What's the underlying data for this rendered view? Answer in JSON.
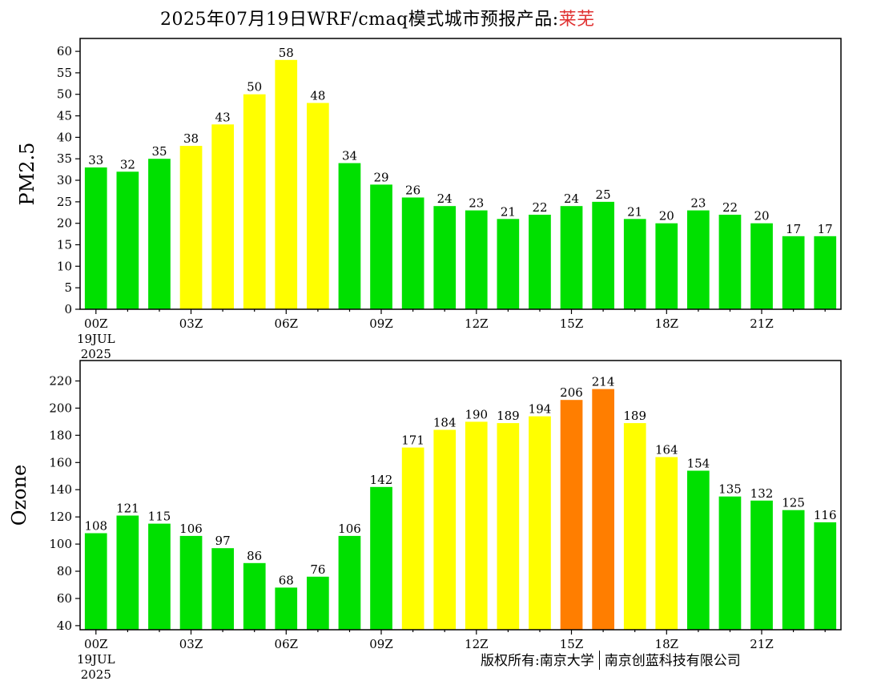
{
  "title": {
    "main": "2025年07月19日WRF/cmaq模式城市预报产品:",
    "city": "莱芜"
  },
  "colors": {
    "good": "#00e000",
    "moderate": "#ffff00",
    "unhealthy_sensitive": "#ff7e00"
  },
  "copyright": {
    "left": "版权所有:南京大学",
    "right": "南京创蓝科技有限公司"
  },
  "chart_data": [
    {
      "type": "bar",
      "ylabel": "PM2.5",
      "ylim": [
        0,
        63
      ],
      "yticks": [
        0,
        5,
        10,
        15,
        20,
        25,
        30,
        35,
        40,
        45,
        50,
        55,
        60
      ],
      "xtick_labels": [
        {
          "hour": 0,
          "lines": [
            "00Z",
            "19JUL",
            "2025"
          ]
        },
        {
          "hour": 3,
          "lines": [
            "03Z"
          ]
        },
        {
          "hour": 6,
          "lines": [
            "06Z"
          ]
        },
        {
          "hour": 9,
          "lines": [
            "09Z"
          ]
        },
        {
          "hour": 12,
          "lines": [
            "12Z"
          ]
        },
        {
          "hour": 15,
          "lines": [
            "15Z"
          ]
        },
        {
          "hour": 18,
          "lines": [
            "18Z"
          ]
        },
        {
          "hour": 21,
          "lines": [
            "21Z"
          ]
        }
      ],
      "values": [
        33,
        32,
        35,
        38,
        43,
        50,
        58,
        48,
        34,
        29,
        26,
        24,
        23,
        21,
        22,
        24,
        25,
        21,
        20,
        23,
        22,
        20,
        17,
        17
      ],
      "value_labels": [
        "33",
        "32",
        "35",
        "38",
        "43",
        "50",
        "58",
        "48",
        "34",
        "29",
        "26",
        "24",
        "23",
        "21",
        "22",
        "24",
        "25",
        "21",
        "20",
        "23",
        "22",
        "20",
        "17",
        "17"
      ],
      "bar_colors": [
        "good",
        "good",
        "good",
        "moderate",
        "moderate",
        "moderate",
        "moderate",
        "moderate",
        "good",
        "good",
        "good",
        "good",
        "good",
        "good",
        "good",
        "good",
        "good",
        "good",
        "good",
        "good",
        "good",
        "good",
        "good",
        "good"
      ]
    },
    {
      "type": "bar",
      "ylabel": "Ozone",
      "ylim": [
        37,
        235
      ],
      "yticks": [
        40,
        60,
        80,
        100,
        120,
        140,
        160,
        180,
        200,
        220
      ],
      "xtick_labels": [
        {
          "hour": 0,
          "lines": [
            "00Z",
            "19JUL",
            "2025"
          ]
        },
        {
          "hour": 3,
          "lines": [
            "03Z"
          ]
        },
        {
          "hour": 6,
          "lines": [
            "06Z"
          ]
        },
        {
          "hour": 9,
          "lines": [
            "09Z"
          ]
        },
        {
          "hour": 12,
          "lines": [
            "12Z"
          ]
        },
        {
          "hour": 15,
          "lines": [
            "15Z"
          ]
        },
        {
          "hour": 18,
          "lines": [
            "18Z"
          ]
        },
        {
          "hour": 21,
          "lines": [
            "21Z"
          ]
        }
      ],
      "values": [
        108,
        121,
        115,
        106,
        97,
        86,
        68,
        76,
        106,
        142,
        171,
        184,
        190,
        189,
        194,
        206,
        214,
        189,
        164,
        154,
        135,
        132,
        125,
        116
      ],
      "value_labels": [
        "108",
        "121",
        "115",
        "106",
        "97",
        "86",
        "68",
        "76",
        "106",
        "142",
        "171",
        "184",
        "190",
        "189",
        "194",
        "206",
        "214",
        "189",
        "164",
        "154",
        "135",
        "132",
        "125",
        "116"
      ],
      "bar_colors": [
        "good",
        "good",
        "good",
        "good",
        "good",
        "good",
        "good",
        "good",
        "good",
        "good",
        "moderate",
        "moderate",
        "moderate",
        "moderate",
        "moderate",
        "unhealthy_sensitive",
        "unhealthy_sensitive",
        "moderate",
        "moderate",
        "good",
        "good",
        "good",
        "good",
        "good"
      ]
    }
  ]
}
